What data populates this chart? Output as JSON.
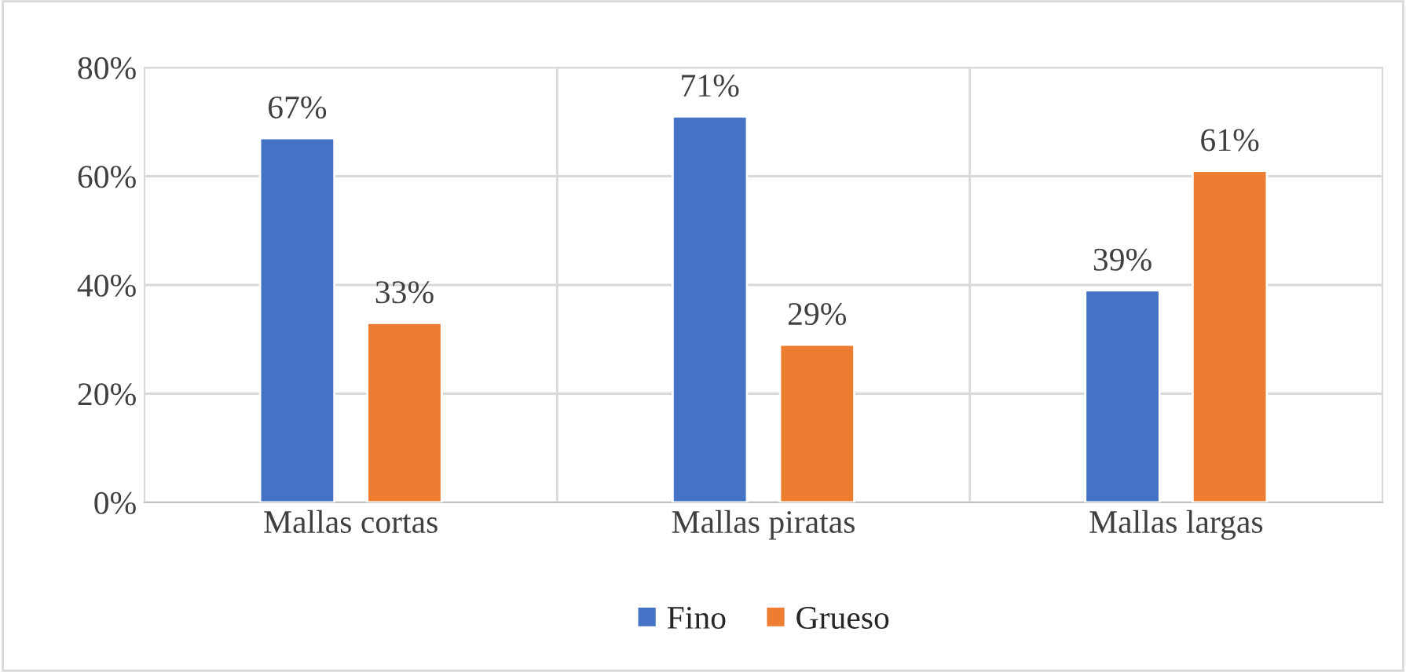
{
  "chart_data": {
    "type": "bar",
    "categories": [
      "Mallas cortas",
      "Mallas piratas",
      "Mallas largas"
    ],
    "series": [
      {
        "name": "Fino",
        "color": "#4472c4",
        "values": [
          67,
          71,
          39
        ],
        "value_labels": [
          "67%",
          "71%",
          "39%"
        ]
      },
      {
        "name": "Grueso",
        "color": "#ed7d31",
        "values": [
          33,
          29,
          61
        ],
        "value_labels": [
          "33%",
          "29%",
          "61%"
        ]
      }
    ],
    "ylim": [
      0,
      80
    ],
    "yticks": [
      {
        "value": 0,
        "label": "0%"
      },
      {
        "value": 20,
        "label": "20%"
      },
      {
        "value": 40,
        "label": "40%"
      },
      {
        "value": 60,
        "label": "60%"
      },
      {
        "value": 80,
        "label": "80%"
      }
    ],
    "grid": "y",
    "legend": "bottom"
  }
}
